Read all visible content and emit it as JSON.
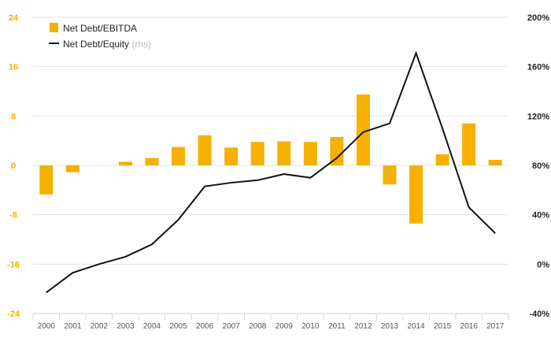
{
  "chart_data": {
    "type": "bar",
    "categories": [
      "2000",
      "2001",
      "2002",
      "2003",
      "2004",
      "2005",
      "2006",
      "2007",
      "2008",
      "2009",
      "2010",
      "2011",
      "2012",
      "2013",
      "2014",
      "2015",
      "2016",
      "2017"
    ],
    "series": [
      {
        "name": "Net Debt/EBITDA",
        "type": "bar",
        "axis": "left",
        "color": "#f5b000",
        "values": [
          -4.7,
          -1.1,
          0.0,
          0.6,
          1.2,
          3.0,
          4.9,
          2.9,
          3.8,
          3.9,
          3.8,
          4.6,
          11.5,
          -3.1,
          -9.4,
          1.8,
          6.8,
          0.9
        ]
      },
      {
        "name": "Net Debt/Equity",
        "name_suffix": "(rhs)",
        "type": "line",
        "axis": "right",
        "color": "#111111",
        "values": [
          -23,
          -7,
          0,
          6,
          16,
          36,
          63,
          66,
          68,
          73,
          70,
          86,
          107,
          114,
          171,
          110,
          46,
          25
        ]
      }
    ],
    "yleft": {
      "min": -24,
      "max": 24,
      "ticks": [
        24,
        16,
        8,
        0,
        -8,
        -16,
        -24
      ],
      "tick_labels": [
        "24",
        "16",
        "8",
        "0",
        "-8",
        "-16",
        "-24"
      ]
    },
    "yright": {
      "min": -40,
      "max": 200,
      "ticks": [
        200,
        160,
        120,
        80,
        40,
        0,
        -40
      ],
      "tick_labels": [
        "200%",
        "160%",
        "120%",
        "80%",
        "40%",
        "0%",
        "-40%"
      ]
    },
    "grid": true,
    "legend": {
      "position": "top-left"
    },
    "title": "",
    "xlabel": "",
    "ylabel": ""
  }
}
